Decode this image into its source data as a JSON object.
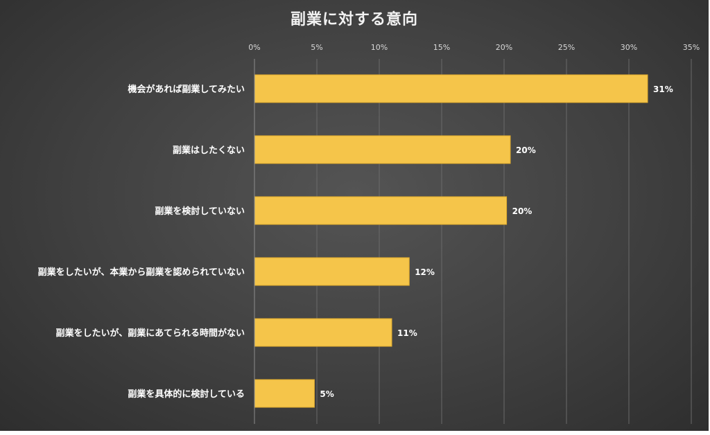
{
  "chart_data": {
    "type": "bar",
    "orientation": "horizontal",
    "title": "副業に対する意向",
    "categories": [
      "機会があれば副業してみたい",
      "副業はしたくない",
      "副業を検討していない",
      "副業をしたいが、本業から副業を認められていない",
      "副業をしたいが、副業にあてられる時間がない",
      "副業を具体的に検討している"
    ],
    "values": [
      31.5,
      20.5,
      20.2,
      12.4,
      11.0,
      4.8
    ],
    "data_labels": [
      "31%",
      "20%",
      "20%",
      "12%",
      "11%",
      "5%"
    ],
    "xlim": [
      0,
      35
    ],
    "ticks": [
      0,
      5,
      10,
      15,
      20,
      25,
      30,
      35
    ],
    "tick_labels": [
      "0%",
      "5%",
      "10%",
      "15%",
      "20%",
      "25%",
      "30%",
      "35%"
    ],
    "tick_position": "top",
    "grid": true,
    "legend": "none",
    "bar_color": "#f5c54a",
    "background_color": "#404040"
  }
}
